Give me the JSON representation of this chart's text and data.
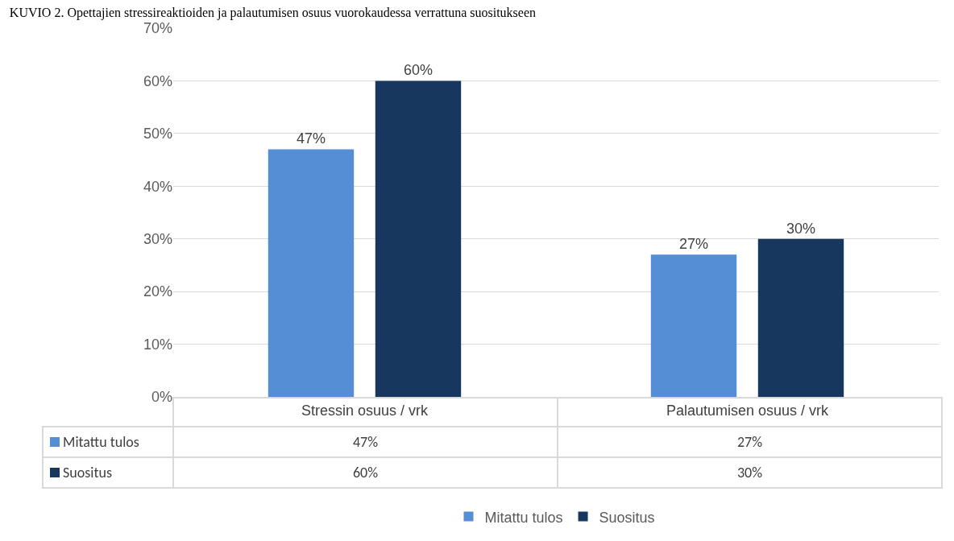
{
  "chart_data": {
    "type": "bar",
    "title": "KUVIO 2. Opettajien stressireaktioiden ja palautumisen osuus vuorokaudessa verrattuna suositukseen",
    "categories": [
      "Stressin osuus / vrk",
      "Palautumisen osuus / vrk"
    ],
    "series": [
      {
        "name": "Mitattu tulos",
        "color": "#558ed5",
        "values": [
          47,
          27
        ],
        "value_labels": [
          "47%",
          "27%"
        ]
      },
      {
        "name": "Suositus",
        "color": "#17375e",
        "values": [
          60,
          30
        ],
        "value_labels": [
          "60%",
          "30%"
        ]
      }
    ],
    "ylim": [
      0,
      70
    ],
    "yticks": [
      {
        "value": 0,
        "label": "0%"
      },
      {
        "value": 10,
        "label": "10%"
      },
      {
        "value": 20,
        "label": "20%"
      },
      {
        "value": 30,
        "label": "30%"
      },
      {
        "value": 40,
        "label": "40%"
      },
      {
        "value": 50,
        "label": "50%"
      },
      {
        "value": 60,
        "label": "60%"
      },
      {
        "value": 70,
        "label": "70%"
      }
    ],
    "grid": "y",
    "legend": "bottom"
  }
}
